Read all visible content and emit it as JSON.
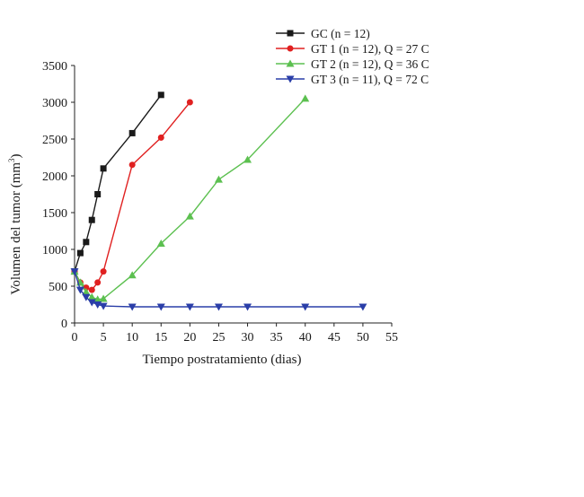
{
  "chart_data": {
    "type": "line",
    "title": "",
    "xlabel": "Tiempo postratamiento (dias)",
    "ylabel": "Volumen del tumor (mm",
    "ylabel_sup": "3",
    "ylabel_close": ")",
    "xlim": [
      0,
      55
    ],
    "ylim": [
      0,
      3500
    ],
    "xticks": [
      0,
      5,
      10,
      15,
      20,
      25,
      30,
      35,
      40,
      45,
      50,
      55
    ],
    "yticks": [
      0,
      500,
      1000,
      1500,
      2000,
      2500,
      3000,
      3500
    ],
    "grid": false,
    "legend_position": "top-right",
    "series": [
      {
        "name": "GC (n = 12)",
        "color": "#1a1a1a",
        "marker": "square",
        "x": [
          0,
          1,
          2,
          3,
          4,
          5,
          10,
          15
        ],
        "y": [
          700,
          950,
          1100,
          1400,
          1750,
          2100,
          2580,
          3100
        ]
      },
      {
        "name": "GT 1 (n = 12), Q = 27 C",
        "color": "#e02020",
        "marker": "circle",
        "x": [
          0,
          1,
          2,
          3,
          4,
          5,
          10,
          15,
          20
        ],
        "y": [
          700,
          550,
          480,
          450,
          550,
          700,
          2150,
          2520,
          3000
        ]
      },
      {
        "name": "GT 2 (n = 12), Q = 36 C",
        "color": "#5cc050",
        "marker": "triangle-up",
        "x": [
          0,
          1,
          2,
          3,
          4,
          5,
          10,
          15,
          20,
          25,
          30,
          40
        ],
        "y": [
          700,
          550,
          420,
          350,
          320,
          330,
          650,
          1080,
          1450,
          1950,
          2220,
          3050
        ]
      },
      {
        "name": "GT 3 (n = 11), Q = 72 C",
        "color": "#2a3ea8",
        "marker": "triangle-down",
        "x": [
          0,
          1,
          2,
          3,
          4,
          5,
          10,
          15,
          20,
          25,
          30,
          40,
          50
        ],
        "y": [
          700,
          450,
          350,
          280,
          250,
          230,
          220,
          220,
          220,
          220,
          220,
          220,
          220
        ]
      }
    ]
  }
}
